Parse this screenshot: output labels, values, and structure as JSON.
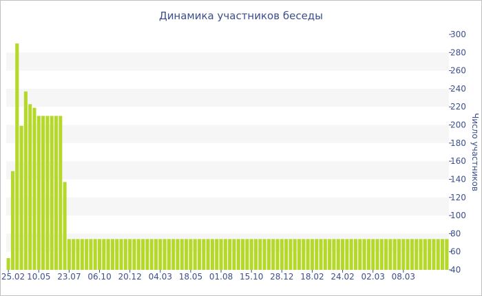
{
  "chart_data": {
    "type": "bar",
    "title": "Динамика участников беседы",
    "xlabel": "",
    "ylabel": "Число участников",
    "ylim": [
      40,
      300
    ],
    "yticks": [
      40,
      60,
      80,
      100,
      120,
      140,
      160,
      180,
      200,
      220,
      240,
      260,
      280,
      300
    ],
    "y_axis_position": "right",
    "grid": "alternating horizontal bands",
    "bar_color": "#b5d92a",
    "band_color": "#f6f6f6",
    "text_color": "#3b4e8c",
    "x_tick_labels": [
      "25.02",
      "10.05",
      "23.07",
      "06.10",
      "20.12",
      "04.03",
      "18.05",
      "01.08",
      "15.10",
      "28.12",
      "18.02",
      "24.02",
      "02.03",
      "08.03"
    ],
    "x_tick_bar_index": [
      0,
      7,
      14,
      21,
      28,
      35,
      42,
      49,
      56,
      63,
      70,
      77,
      84,
      91
    ],
    "values": [
      53,
      149,
      290,
      199,
      237,
      223,
      219,
      210,
      210,
      210,
      210,
      210,
      210,
      137,
      74,
      74,
      74,
      74,
      74,
      74,
      74,
      74,
      74,
      74,
      74,
      74,
      74,
      74,
      74,
      74,
      74,
      74,
      74,
      74,
      74,
      74,
      74,
      74,
      74,
      74,
      74,
      74,
      74,
      74,
      74,
      74,
      74,
      74,
      74,
      74,
      74,
      74,
      74,
      74,
      74,
      74,
      74,
      74,
      74,
      74,
      74,
      74,
      74,
      74,
      74,
      74,
      74,
      74,
      74,
      74,
      74,
      74,
      74,
      74,
      74,
      74,
      74,
      74,
      74,
      74,
      74,
      74,
      74,
      74,
      74,
      74,
      74,
      74,
      74,
      74,
      74,
      74,
      74,
      74,
      74,
      74,
      74,
      74,
      74,
      74,
      74,
      74
    ]
  }
}
